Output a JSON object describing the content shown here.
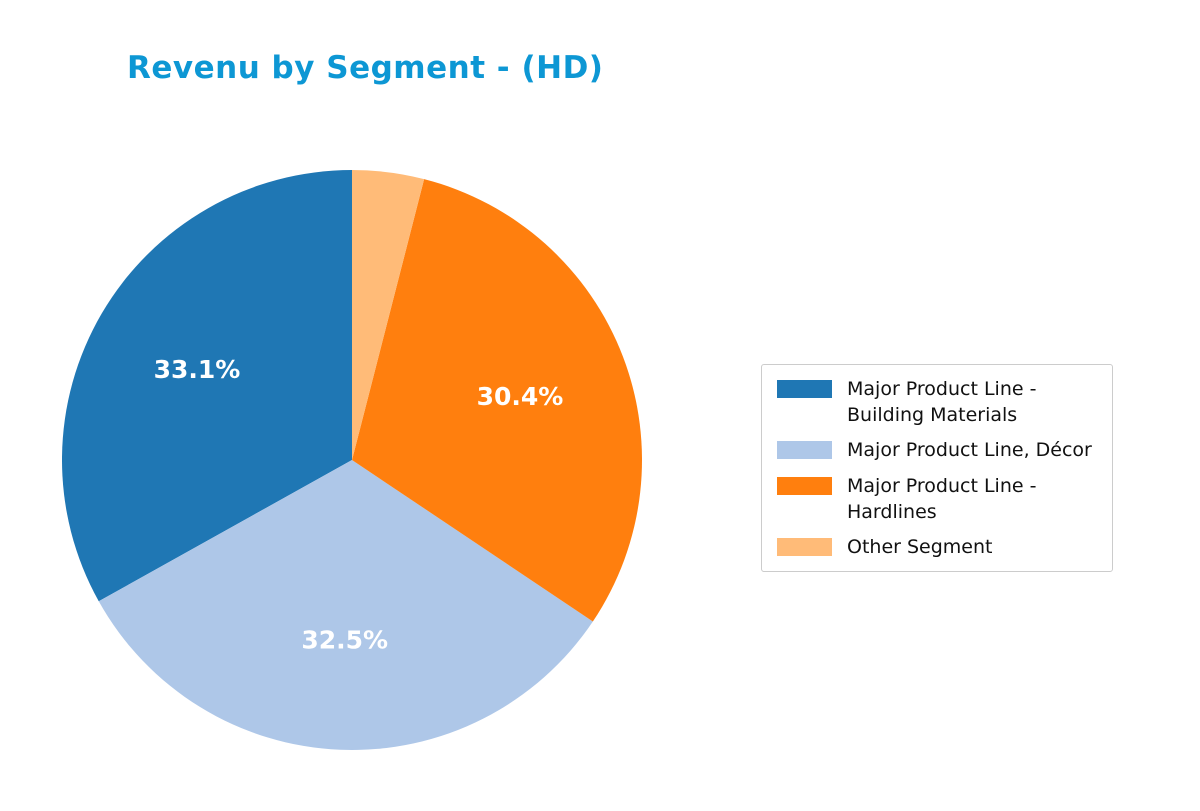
{
  "chart": {
    "title": "Revenu by Segment - (HD)",
    "title_color": "#0d97d4",
    "background_color": "#ffffff",
    "legend_border_color": "#cccccc",
    "percent_label_color": "#ffffff"
  },
  "chart_data": {
    "type": "pie",
    "title": "Revenu by Segment - (HD)",
    "start_angle": 90,
    "direction": "counterclockwise",
    "legend_position": "center right",
    "segments": [
      {
        "label": "Major Product Line -\nBuilding Materials",
        "value": 33.1,
        "display": "33.1%",
        "color": "#1f77b4"
      },
      {
        "label": "Major Product Line, Décor",
        "value": 32.5,
        "display": "32.5%",
        "color": "#aec7e8"
      },
      {
        "label": "Major Product Line -\nHardlines",
        "value": 30.4,
        "display": "30.4%",
        "color": "#ff7f0e"
      },
      {
        "label": "Other Segment",
        "value": 4.0,
        "display": "",
        "color": "#ffbb78"
      }
    ]
  }
}
